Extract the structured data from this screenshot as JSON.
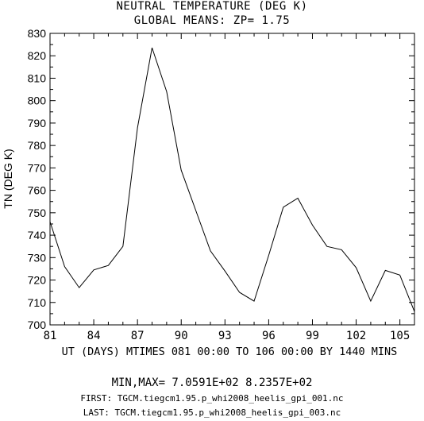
{
  "header": {
    "title": "NEUTRAL TEMPERATURE (DEG K)",
    "subtitle": "GLOBAL MEANS: ZP=  1.75"
  },
  "chart_data": {
    "type": "line",
    "title": "NEUTRAL TEMPERATURE (DEG K)",
    "subtitle": "GLOBAL MEANS: ZP=  1.75",
    "xlabel": "UT (DAYS) MTIMES 081 00:00 TO 106 00:00 BY 1440 MINS",
    "ylabel": "TN (DEG K)",
    "xlim": [
      81,
      106
    ],
    "ylim": [
      700,
      830
    ],
    "xticks": [
      81,
      84,
      87,
      90,
      93,
      96,
      99,
      102,
      105
    ],
    "yticks": [
      700,
      710,
      720,
      730,
      740,
      750,
      760,
      770,
      780,
      790,
      800,
      810,
      820,
      830
    ],
    "grid": false,
    "series": [
      {
        "x": [
          81,
          82,
          83,
          84,
          85,
          86,
          87,
          88,
          89,
          90,
          91,
          92,
          93,
          94,
          95,
          96,
          97,
          98,
          99,
          100,
          101,
          102,
          103,
          104,
          105,
          106
        ],
        "values": [
          746,
          726,
          716.6,
          724.5,
          726.5,
          735,
          788,
          823.6,
          804,
          769,
          751,
          733,
          724,
          714.5,
          710.6,
          731,
          752.5,
          756.5,
          744.5,
          735,
          733.5,
          725.5,
          710.6,
          724.3,
          722.2,
          705.9
        ]
      }
    ]
  },
  "footer": {
    "minmax": "MIN,MAX=  7.0591E+02  8.2357E+02",
    "first": "FIRST: TGCM.tiegcm1.95.p_whi2008_heelis_gpi_001.nc",
    "last": "LAST:  TGCM.tiegcm1.95.p_whi2008_heelis_gpi_003.nc"
  }
}
